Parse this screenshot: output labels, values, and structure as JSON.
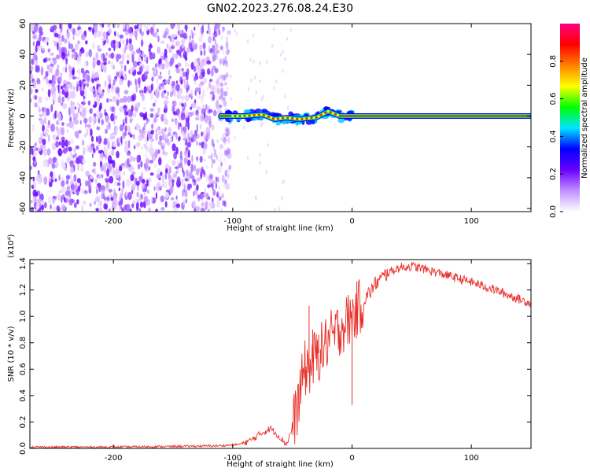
{
  "title": "GN02.2023.276.08.24.E30",
  "chart_data": [
    {
      "type": "heatmap",
      "xlabel": "Height of straight line (km)",
      "ylabel": "Frequency (Hz)",
      "xlim": [
        -270,
        150
      ],
      "ylim": [
        -62,
        60
      ],
      "xticks": [
        "-200",
        "-100",
        "0",
        "100"
      ],
      "xtick_values": [
        -200,
        -100,
        0,
        100
      ],
      "yticks": [
        "60",
        "40",
        "20",
        "0",
        "-20",
        "-40",
        "-60"
      ],
      "ytick_values": [
        60,
        40,
        20,
        0,
        -20,
        -40,
        -60
      ],
      "noise_region_x": [
        -270,
        -110
      ],
      "signal_line": {
        "x_start": -110,
        "x_end": 150,
        "frequency": 0,
        "wobble_points": [
          {
            "x": -110,
            "y": 0
          },
          {
            "x": -90,
            "y": 0
          },
          {
            "x": -75,
            "y": 1
          },
          {
            "x": -65,
            "y": -2
          },
          {
            "x": -55,
            "y": -1
          },
          {
            "x": -45,
            "y": -2
          },
          {
            "x": -30,
            "y": -1
          },
          {
            "x": -20,
            "y": 3
          },
          {
            "x": -10,
            "y": 0
          },
          {
            "x": 0,
            "y": 0
          },
          {
            "x": 150,
            "y": 0
          }
        ]
      },
      "colorbar": {
        "label": "Normalized spectral amplitude",
        "ticks": [
          "0.0",
          "0.2",
          "0.4",
          "0.6",
          "0.8"
        ],
        "tick_values": [
          0.0,
          0.2,
          0.4,
          0.6,
          0.8
        ],
        "range": [
          0,
          1
        ],
        "colors": [
          "#ffffff",
          "#c090ff",
          "#6a00ff",
          "#0000ff",
          "#00e5ff",
          "#00ff00",
          "#ffff00",
          "#ff8000",
          "#ff0000",
          "#ff0080"
        ]
      }
    },
    {
      "type": "line",
      "xlabel": "Height of straight line (km)",
      "ylabel": "SNR (10 * v/v)",
      "y_scale_label": "(x10⁴)",
      "xlim": [
        -270,
        150
      ],
      "ylim": [
        0,
        1.43
      ],
      "xticks": [
        "-200",
        "-100",
        "0",
        "100"
      ],
      "xtick_values": [
        -200,
        -100,
        0,
        100
      ],
      "yticks": [
        "0.0",
        "0.2",
        "0.4",
        "0.6",
        "0.8",
        "1.0",
        "1.2",
        "1.4"
      ],
      "ytick_values": [
        0.0,
        0.2,
        0.4,
        0.6,
        0.8,
        1.0,
        1.2,
        1.4
      ],
      "color": "#e8302a",
      "series_points": [
        {
          "x": -270,
          "y": 0.01
        },
        {
          "x": -200,
          "y": 0.01
        },
        {
          "x": -150,
          "y": 0.015
        },
        {
          "x": -110,
          "y": 0.02
        },
        {
          "x": -95,
          "y": 0.03
        },
        {
          "x": -85,
          "y": 0.06
        },
        {
          "x": -75,
          "y": 0.12
        },
        {
          "x": -68,
          "y": 0.15
        },
        {
          "x": -62,
          "y": 0.1
        },
        {
          "x": -55,
          "y": 0.03
        },
        {
          "x": -50,
          "y": 0.15
        },
        {
          "x": -45,
          "y": 0.35
        },
        {
          "x": -40,
          "y": 0.6
        },
        {
          "x": -35,
          "y": 0.62
        },
        {
          "x": -30,
          "y": 0.7
        },
        {
          "x": -25,
          "y": 0.75
        },
        {
          "x": -20,
          "y": 0.82
        },
        {
          "x": -15,
          "y": 0.85
        },
        {
          "x": -10,
          "y": 0.92
        },
        {
          "x": -5,
          "y": 0.95
        },
        {
          "x": 0,
          "y": 1.0
        },
        {
          "x": 10,
          "y": 1.12
        },
        {
          "x": 20,
          "y": 1.25
        },
        {
          "x": 30,
          "y": 1.33
        },
        {
          "x": 40,
          "y": 1.37
        },
        {
          "x": 50,
          "y": 1.38
        },
        {
          "x": 60,
          "y": 1.36
        },
        {
          "x": 80,
          "y": 1.31
        },
        {
          "x": 100,
          "y": 1.26
        },
        {
          "x": 120,
          "y": 1.2
        },
        {
          "x": 140,
          "y": 1.13
        },
        {
          "x": 150,
          "y": 1.1
        }
      ],
      "spikes": [
        {
          "x": -36,
          "y": 1.08
        },
        {
          "x": -33,
          "y": 0.9
        },
        {
          "x": -28,
          "y": 0.86
        },
        {
          "x": -22,
          "y": 0.92
        },
        {
          "x": -12,
          "y": 1.02
        },
        {
          "x": -3,
          "y": 1.08
        },
        {
          "x": 0,
          "y": 0.33
        }
      ]
    }
  ]
}
